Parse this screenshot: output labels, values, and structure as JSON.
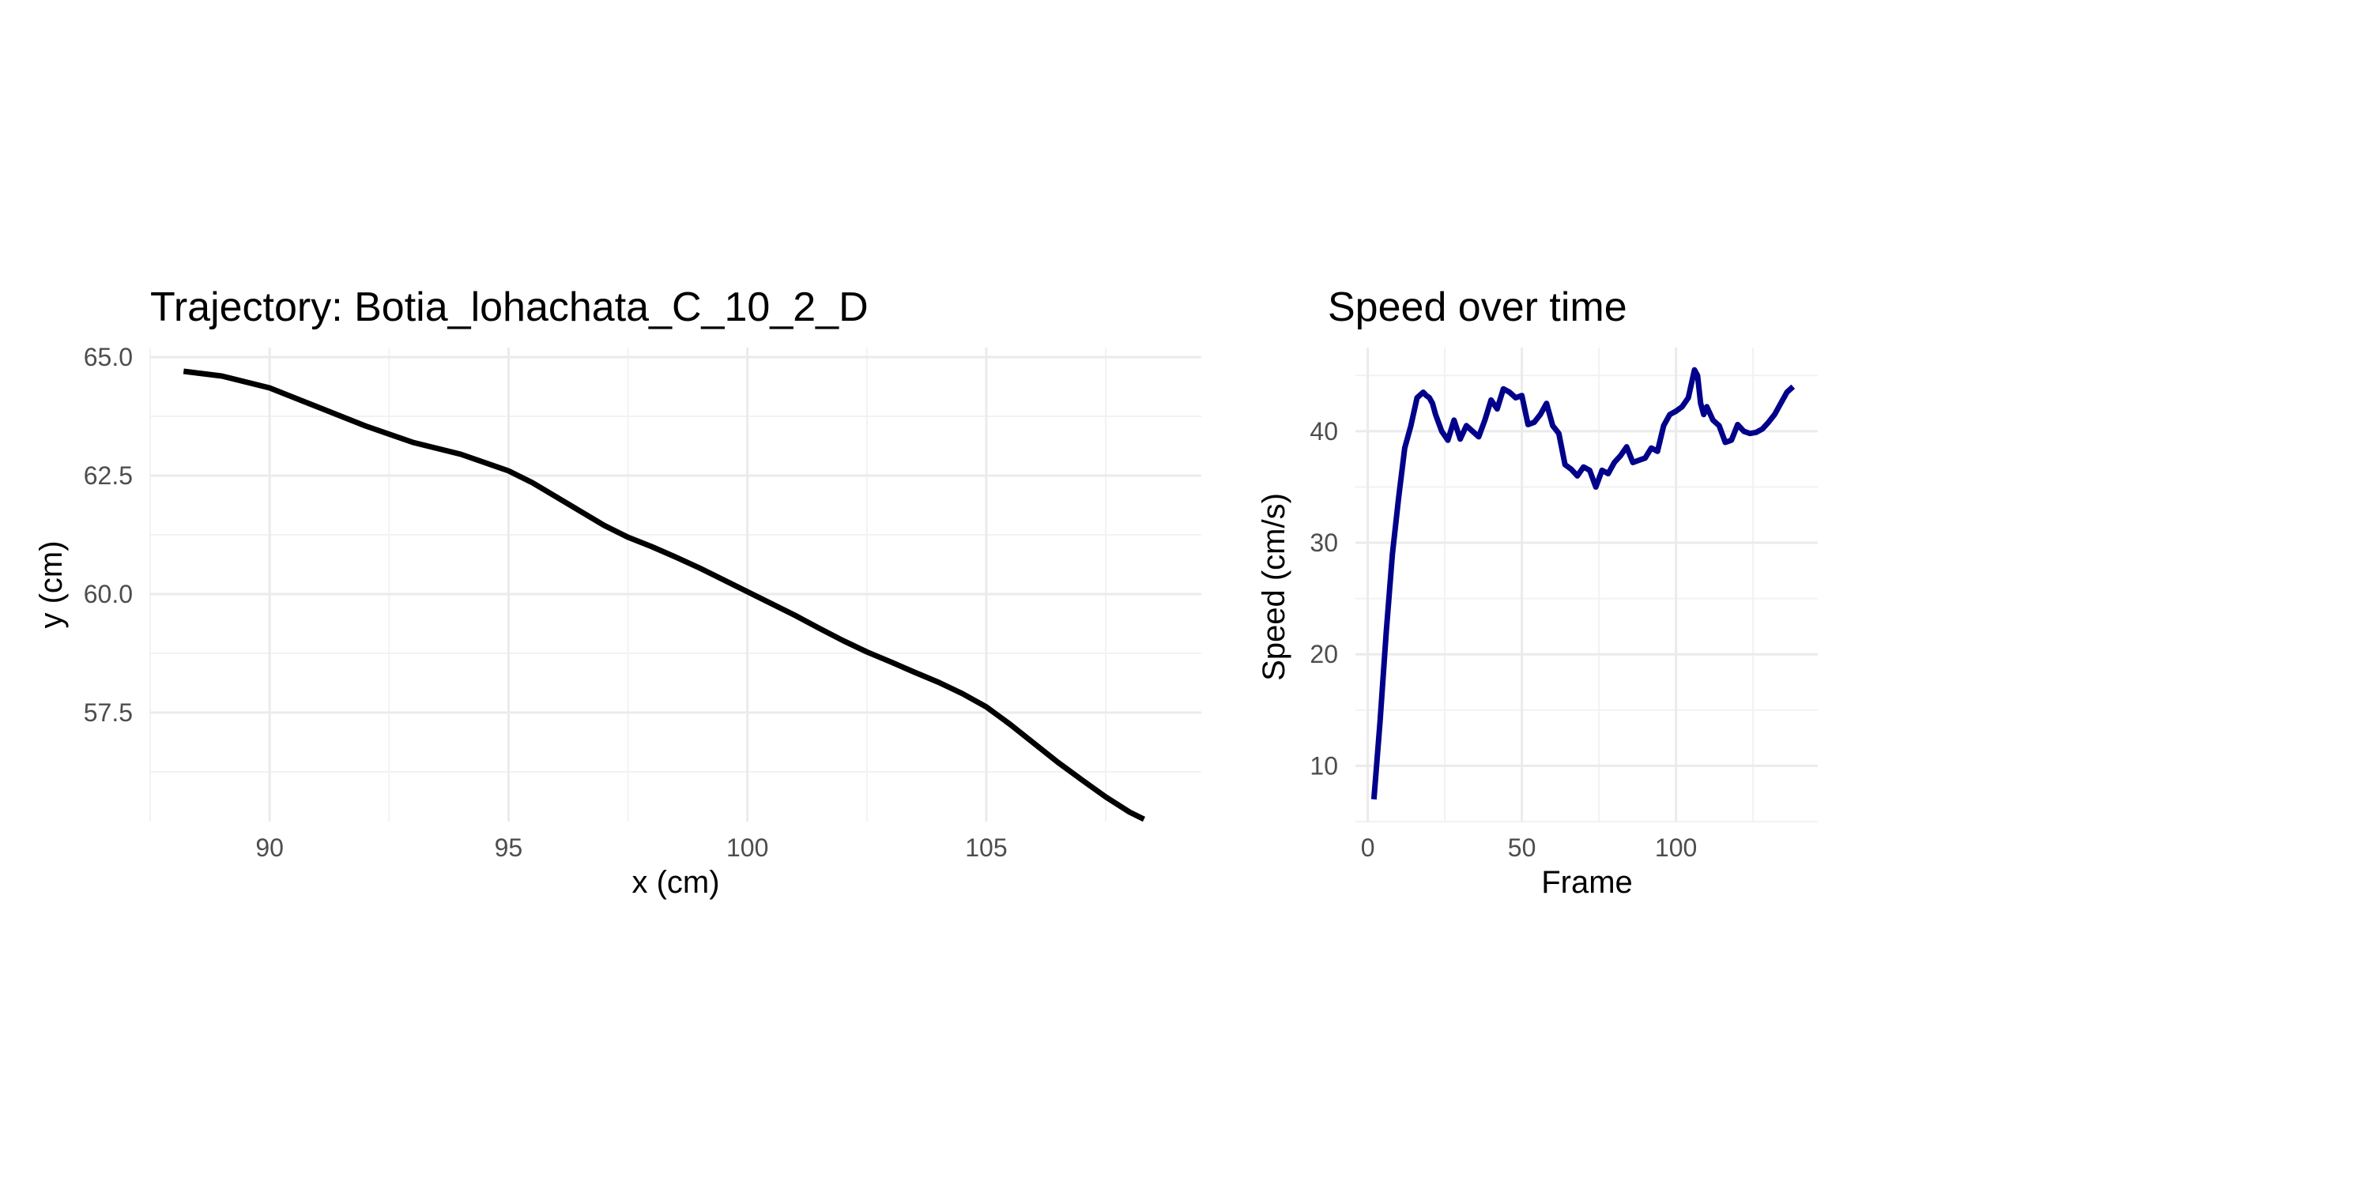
{
  "charts": [
    {
      "id": "trajectory",
      "chart_data": {
        "type": "line",
        "title": "Trajectory: Botia_lohachata_C_10_2_D",
        "xlabel": "x (cm)",
        "ylabel": "y (cm)",
        "xlim": [
          87.5,
          109.5
        ],
        "ylim": [
          55.2,
          65.2
        ],
        "xticks": [
          90,
          95,
          100,
          105
        ],
        "xtick_labels": [
          "90",
          "95",
          "100",
          "105"
        ],
        "yticks": [
          57.5,
          60.0,
          62.5,
          65.0
        ],
        "ytick_labels": [
          "57.5",
          "60.0",
          "62.5",
          "65.0"
        ],
        "grid": true,
        "line_color": "#000000",
        "series": [
          {
            "x": [
              88.2,
              89.0,
              90.0,
              91.0,
              92.0,
              93.0,
              94.0,
              95.0,
              95.5,
              96.0,
              96.5,
              97.0,
              97.5,
              98.0,
              98.5,
              99.0,
              99.5,
              100.0,
              100.5,
              101.0,
              101.5,
              102.0,
              102.5,
              103.0,
              103.5,
              104.0,
              104.5,
              105.0,
              105.5,
              106.0,
              106.5,
              107.0,
              107.5,
              108.0,
              108.3
            ],
            "y": [
              64.7,
              64.6,
              64.35,
              63.95,
              63.55,
              63.2,
              62.95,
              62.6,
              62.35,
              62.05,
              61.75,
              61.45,
              61.2,
              61.0,
              60.78,
              60.55,
              60.3,
              60.05,
              59.8,
              59.55,
              59.28,
              59.02,
              58.78,
              58.57,
              58.35,
              58.14,
              57.9,
              57.62,
              57.25,
              56.85,
              56.45,
              56.08,
              55.72,
              55.4,
              55.25
            ]
          }
        ]
      }
    },
    {
      "id": "speed",
      "chart_data": {
        "type": "line",
        "title": "Speed over time",
        "xlabel": "Frame",
        "ylabel": "Speed (cm/s)",
        "xlim": [
          -4,
          146
        ],
        "ylim": [
          5,
          47.5
        ],
        "xticks": [
          0,
          50,
          100
        ],
        "xtick_labels": [
          "0",
          "50",
          "100"
        ],
        "yticks": [
          10,
          20,
          30,
          40
        ],
        "ytick_labels": [
          "10",
          "20",
          "30",
          "40"
        ],
        "grid": true,
        "line_color": "#00008B",
        "series": [
          {
            "x": [
              2,
              4,
              6,
              8,
              10,
              12,
              14,
              16,
              18,
              19,
              20,
              21,
              22,
              24,
              26,
              28,
              30,
              32,
              34,
              36,
              38,
              40,
              42,
              44,
              46,
              48,
              50,
              52,
              54,
              56,
              58,
              60,
              62,
              64,
              66,
              68,
              70,
              72,
              74,
              76,
              78,
              80,
              82,
              84,
              86,
              88,
              90,
              92,
              94,
              96,
              98,
              100,
              102,
              104,
              106,
              107,
              108,
              109,
              110,
              112,
              114,
              116,
              118,
              120,
              122,
              124,
              126,
              128,
              130,
              132,
              134,
              136,
              138
            ],
            "y": [
              7.0,
              14.0,
              22.0,
              29.0,
              34.0,
              38.5,
              40.5,
              43.0,
              43.5,
              43.2,
              43.0,
              42.5,
              41.5,
              40.0,
              39.2,
              41.0,
              39.3,
              40.5,
              40.0,
              39.5,
              41.0,
              42.8,
              42.0,
              43.8,
              43.5,
              43.0,
              43.2,
              40.6,
              40.8,
              41.5,
              42.5,
              40.5,
              39.8,
              37.0,
              36.6,
              36.0,
              36.8,
              36.5,
              35.0,
              36.5,
              36.2,
              37.2,
              37.8,
              38.6,
              37.2,
              37.4,
              37.6,
              38.5,
              38.2,
              40.5,
              41.5,
              41.8,
              42.2,
              43.0,
              45.5,
              45.0,
              42.5,
              41.5,
              42.2,
              41.0,
              40.5,
              39.0,
              39.2,
              40.6,
              40.0,
              39.8,
              39.9,
              40.2,
              40.8,
              41.5,
              42.5,
              43.5,
              44.0
            ]
          }
        ]
      }
    }
  ]
}
